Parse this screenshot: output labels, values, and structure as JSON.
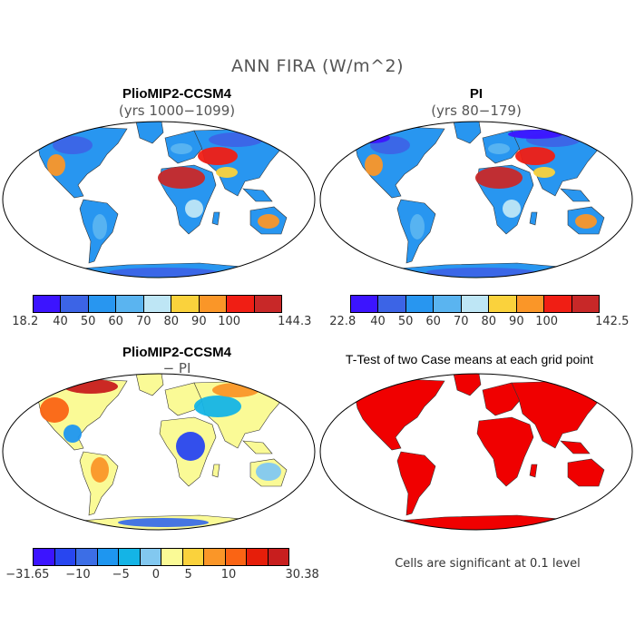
{
  "figure": {
    "title": "ANN FIRA (W/m^2)"
  },
  "panels": {
    "top_left": {
      "title": "PlioMIP2-CCSM4",
      "subtitle": "(yrs 1000−1099)",
      "colorbar": {
        "colors": [
          "#3c14ff",
          "#3c64e6",
          "#2896f0",
          "#5ab4f0",
          "#bee6f5",
          "#fad23c",
          "#fa9628",
          "#f01e14",
          "#c82828"
        ],
        "labels": [
          "18.2",
          "40",
          "50",
          "60",
          "70",
          "80",
          "90",
          "100",
          "144.3"
        ]
      }
    },
    "top_right": {
      "title": "PI",
      "subtitle": "(yrs 80−179)",
      "colorbar": {
        "colors": [
          "#3c14ff",
          "#3c64e6",
          "#2896f0",
          "#5ab4f0",
          "#bee6f5",
          "#fad23c",
          "#fa9628",
          "#f01e14",
          "#c82828"
        ],
        "labels": [
          "22.8",
          "40",
          "50",
          "60",
          "70",
          "80",
          "90",
          "100",
          "142.5"
        ]
      }
    },
    "bottom_left": {
      "title": "PlioMIP2-CCSM4",
      "subtitle": "− PI",
      "colorbar": {
        "colors": [
          "#3c14ff",
          "#2846f0",
          "#3c6ee6",
          "#1e96f0",
          "#14b4e6",
          "#82c8f0",
          "#fafa96",
          "#fad23c",
          "#fa9628",
          "#fa6414",
          "#e61e0a",
          "#c81e1e"
        ],
        "labels": [
          "−31.65",
          "−10",
          "−5",
          "0",
          "5",
          "10",
          "30.38"
        ]
      }
    },
    "bottom_right": {
      "title": "T-Test of two Case means at each grid point",
      "note": "Cells are significant at 0.1 level",
      "color": "#f00000"
    }
  }
}
